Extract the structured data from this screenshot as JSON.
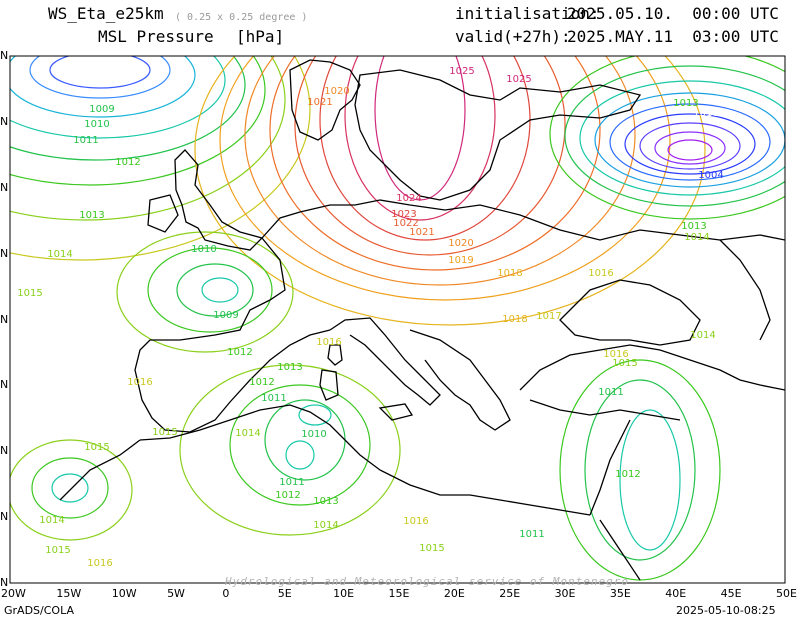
{
  "header": {
    "model": "WS_Eta_e25km",
    "resolution": "( 0.25 x 0.25 degree )",
    "variable": "MSL Pressure",
    "unit": "[hPa]",
    "init_label": "initialisation:",
    "init_value": "2025.05.10.  00:00 UTC",
    "valid_label": "valid(+27h):",
    "valid_value": "2025.MAY.11  03:00 UTC"
  },
  "axes": {
    "x_ticks": [
      "20W",
      "15W",
      "10W",
      "5W",
      "0",
      "5E",
      "10E",
      "15E",
      "20E",
      "25E",
      "30E",
      "35E",
      "40E",
      "45E",
      "50E"
    ],
    "y_ticks": [
      "N",
      "N",
      "N",
      "N",
      "N",
      "N",
      "N",
      "N",
      "N"
    ]
  },
  "footer": {
    "left": "GrADS/COLA",
    "right": "2025-05-10-08:25",
    "watermark": "Hydrological and Meteorological service of Montenegro"
  },
  "isobar_labels": [
    {
      "text": "1009",
      "color": "#22c24b"
    },
    {
      "text": "1010",
      "color": "#22c24b"
    },
    {
      "text": "1011",
      "color": "#22c24b"
    },
    {
      "text": "1012",
      "color": "#3ac81e"
    },
    {
      "text": "1013",
      "color": "#3ac81e"
    },
    {
      "text": "1014",
      "color": "#8ad01a"
    },
    {
      "text": "1015",
      "color": "#8ad01a"
    },
    {
      "text": "1016",
      "color": "#c8c81e"
    },
    {
      "text": "1017",
      "color": "#c8c81e"
    },
    {
      "text": "1018",
      "color": "#e6b41e"
    },
    {
      "text": "1019",
      "color": "#f0a01e"
    },
    {
      "text": "1020",
      "color": "#f08a28"
    },
    {
      "text": "1021",
      "color": "#ee6e28"
    },
    {
      "text": "1022",
      "color": "#e85a32"
    },
    {
      "text": "1023",
      "color": "#e0463c"
    },
    {
      "text": "1024",
      "color": "#d83260"
    },
    {
      "text": "1025",
      "color": "#d0287a"
    },
    {
      "text": "1004",
      "color": "#2a3cff"
    },
    {
      "text": "1010",
      "color": "#ffffff"
    }
  ],
  "colors": {
    "land_outline": "#000000",
    "low_north_atlantic": "#3a5cff",
    "low_caspian": "#a020f0",
    "high_scandinavia": "#d0287a"
  }
}
